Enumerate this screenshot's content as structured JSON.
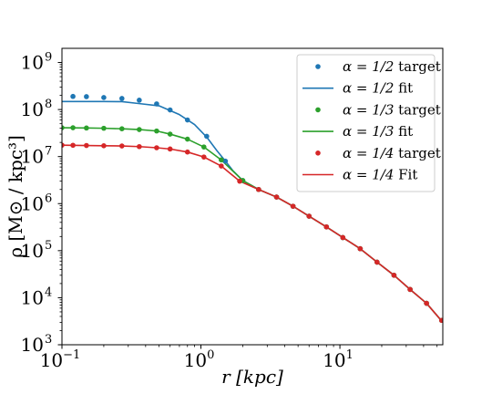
{
  "chart_data": {
    "type": "line",
    "xlabel": "r [kpc]",
    "ylabel": "ρ [M⊙ / kpc³]",
    "xscale": "log",
    "yscale": "log",
    "xlim": [
      0.1,
      55
    ],
    "ylim": [
      1000,
      2000000000
    ],
    "xticks": [
      {
        "value": 0.1,
        "base": "10",
        "exp": "−1"
      },
      {
        "value": 1,
        "base": "10",
        "exp": "0"
      },
      {
        "value": 10,
        "base": "10",
        "exp": "1"
      }
    ],
    "yticks": [
      {
        "value": 1000,
        "base": "10",
        "exp": "3"
      },
      {
        "value": 10000,
        "base": "10",
        "exp": "4"
      },
      {
        "value": 100000,
        "base": "10",
        "exp": "5"
      },
      {
        "value": 1000000,
        "base": "10",
        "exp": "6"
      },
      {
        "value": 10000000,
        "base": "10",
        "exp": "7"
      },
      {
        "value": 100000000,
        "base": "10",
        "exp": "8"
      },
      {
        "value": 1000000000,
        "base": "10",
        "exp": "9"
      }
    ],
    "legend_position": "top-right",
    "grid": false,
    "series": [
      {
        "name": "α = 1/2 target",
        "kind": "scatter",
        "color": "#1f77b4",
        "x": [
          0.12,
          0.15,
          0.2,
          0.27,
          0.36,
          0.48,
          0.6,
          0.8,
          1.1,
          1.5,
          2.0,
          2.6,
          3.5,
          4.6,
          6.0,
          8.0,
          10.5,
          14,
          18.5,
          24.5,
          32,
          42,
          54
        ],
        "y": [
          190000000,
          188000000,
          180000000,
          172000000,
          158000000,
          132000000,
          98000000,
          60000000,
          27000000,
          8000000,
          3100000,
          2000000,
          1380000,
          880000,
          540000,
          320000,
          190000,
          110000,
          57000,
          30000,
          15000,
          7600,
          3300
        ]
      },
      {
        "name": "α = 1/2 fit",
        "kind": "line",
        "color": "#1f77b4",
        "x": [
          0.1,
          0.15,
          0.2,
          0.27,
          0.35,
          0.5,
          0.7,
          0.9,
          1.1,
          1.3,
          1.5,
          1.7,
          2.0,
          2.6,
          3.5,
          4.6,
          6.0,
          8.0,
          10.5,
          14,
          18.5,
          24.5,
          32,
          42,
          55
        ],
        "y": [
          148000000,
          148000000,
          148000000,
          147000000,
          135000000,
          120000000,
          78000000,
          48000000,
          26000000,
          13500000,
          8000000,
          5000000,
          3100000,
          2000000,
          1380000,
          880000,
          540000,
          320000,
          190000,
          110000,
          57000,
          30000,
          15000,
          7600,
          3000
        ]
      },
      {
        "name": "α = 1/3 target",
        "kind": "scatter",
        "color": "#2ca02c",
        "x": [
          0.1,
          0.12,
          0.15,
          0.2,
          0.27,
          0.36,
          0.48,
          0.6,
          0.8,
          1.05,
          1.4,
          2.0,
          2.6,
          3.5,
          4.6,
          6.0,
          8.0,
          10.5,
          14,
          18.5,
          24.5,
          32,
          42,
          54
        ],
        "y": [
          41000000,
          41000000,
          40500000,
          40000000,
          39000000,
          37500000,
          35000000,
          30000000,
          23500000,
          16000000,
          8500000,
          3100000,
          2000000,
          1380000,
          880000,
          540000,
          320000,
          190000,
          110000,
          57000,
          30000,
          15000,
          7600,
          3300
        ]
      },
      {
        "name": "α = 1/3 fit",
        "kind": "line",
        "color": "#2ca02c",
        "x": [
          0.1,
          0.15,
          0.2,
          0.27,
          0.36,
          0.48,
          0.6,
          0.8,
          1.05,
          1.4,
          2.0,
          2.6,
          3.5,
          4.6,
          6.0,
          8.0,
          10.5,
          14,
          18.5,
          24.5,
          32,
          42,
          55
        ],
        "y": [
          41000000,
          40500000,
          40000000,
          39000000,
          37500000,
          35000000,
          30000000,
          23500000,
          16000000,
          8500000,
          3100000,
          2000000,
          1380000,
          880000,
          540000,
          320000,
          190000,
          110000,
          57000,
          30000,
          15000,
          7600,
          3000
        ]
      },
      {
        "name": "α = 1/4 target",
        "kind": "scatter",
        "color": "#d62728",
        "x": [
          0.1,
          0.12,
          0.15,
          0.2,
          0.27,
          0.36,
          0.48,
          0.6,
          0.8,
          1.05,
          1.4,
          1.9,
          2.6,
          3.5,
          4.6,
          6.0,
          8.0,
          10.5,
          14,
          18.5,
          24.5,
          32,
          42,
          54
        ],
        "y": [
          17500000,
          17400000,
          17200000,
          17000000,
          16800000,
          16300000,
          15400000,
          14500000,
          12500000,
          9800000,
          6300000,
          3000000,
          2000000,
          1380000,
          880000,
          540000,
          320000,
          190000,
          110000,
          57000,
          30000,
          15000,
          7600,
          3300
        ]
      },
      {
        "name": "α = 1/4 Fit",
        "kind": "line",
        "color": "#d62728",
        "x": [
          0.1,
          0.15,
          0.2,
          0.27,
          0.36,
          0.48,
          0.6,
          0.8,
          1.05,
          1.4,
          1.9,
          2.6,
          3.5,
          4.6,
          6.0,
          8.0,
          10.5,
          14,
          18.5,
          24.5,
          32,
          42,
          55
        ],
        "y": [
          17500000,
          17200000,
          17000000,
          16800000,
          16300000,
          15400000,
          14500000,
          12500000,
          9800000,
          6300000,
          3000000,
          2000000,
          1380000,
          880000,
          540000,
          320000,
          190000,
          110000,
          57000,
          30000,
          15000,
          7600,
          3000
        ]
      }
    ],
    "legend": [
      {
        "kind": "scatter",
        "color": "#1f77b4",
        "label_pre": "α = 1/2",
        "label_post": " target"
      },
      {
        "kind": "line",
        "color": "#1f77b4",
        "label_pre": "α = 1/2",
        "label_post": " fit"
      },
      {
        "kind": "scatter",
        "color": "#2ca02c",
        "label_pre": "α = 1/3",
        "label_post": " target"
      },
      {
        "kind": "line",
        "color": "#2ca02c",
        "label_pre": "α = 1/3",
        "label_post": " fit"
      },
      {
        "kind": "scatter",
        "color": "#d62728",
        "label_pre": "α = 1/4",
        "label_post": " target"
      },
      {
        "kind": "line",
        "color": "#d62728",
        "label_pre": "α = 1/4",
        "label_post": " Fit"
      }
    ]
  }
}
